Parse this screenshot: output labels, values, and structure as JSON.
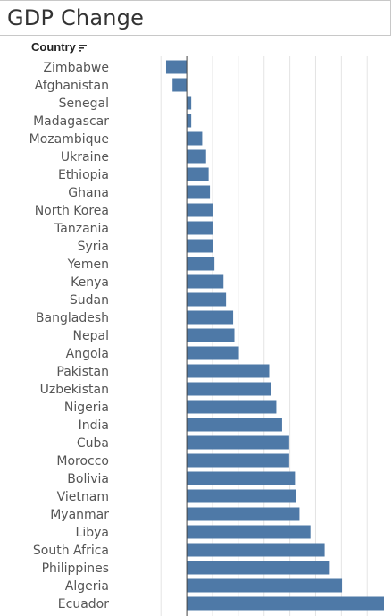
{
  "title": "GDP Change",
  "column_header": "Country",
  "colors": {
    "bar": "#4e79a7",
    "grid": "#e4e4e4",
    "axis": "#444444",
    "label": "#555555"
  },
  "icons": {
    "sort": "sort-descending-icon"
  },
  "chart_data": {
    "type": "bar",
    "orientation": "horizontal",
    "categories": [
      "Zimbabwe",
      "Afghanistan",
      "Senegal",
      "Madagascar",
      "Mozambique",
      "Ukraine",
      "Ethiopia",
      "Ghana",
      "North Korea",
      "Tanzania",
      "Syria",
      "Yemen",
      "Kenya",
      "Sudan",
      "Bangladesh",
      "Nepal",
      "Angola",
      "Pakistan",
      "Uzbekistan",
      "Nigeria",
      "India",
      "Cuba",
      "Morocco",
      "Bolivia",
      "Vietnam",
      "Myanmar",
      "Libya",
      "South Africa",
      "Philippines",
      "Algeria",
      "Ecuador"
    ],
    "values": [
      -1.6,
      -1.1,
      0.35,
      0.35,
      1.2,
      1.5,
      1.7,
      1.8,
      2.0,
      2.0,
      2.05,
      2.15,
      2.85,
      3.05,
      3.6,
      3.7,
      4.05,
      6.4,
      6.55,
      6.95,
      7.4,
      7.95,
      7.95,
      8.4,
      8.5,
      8.75,
      9.6,
      10.7,
      11.1,
      12.05,
      15.3
    ],
    "xlim": [
      -3.4,
      15.3
    ],
    "grid_x": [
      -2,
      0,
      2,
      4,
      6,
      8,
      10,
      12,
      14
    ],
    "grid": true,
    "legend": "none"
  }
}
